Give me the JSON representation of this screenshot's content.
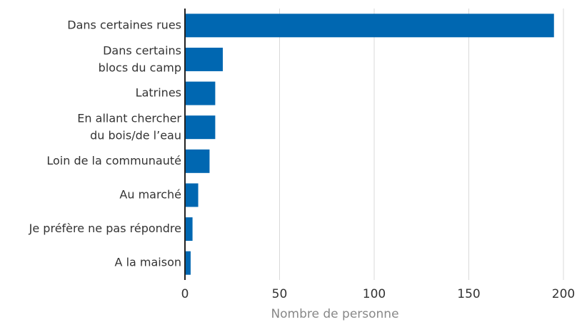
{
  "chart_data": {
    "type": "barh",
    "categories": [
      "Dans certaines rues",
      "Dans certains\nblocs du camp",
      "Latrines",
      "En allant chercher\ndu bois/de l’eau",
      "Loin de la communauté",
      "Au marché",
      "Je préfère ne pas répondre",
      "A la maison"
    ],
    "values": [
      195,
      20,
      16,
      16,
      13,
      7,
      4,
      3
    ],
    "color": "#0067b1",
    "xlim": [
      0,
      200
    ],
    "xticks": [
      0,
      50,
      100,
      150,
      200
    ],
    "grid": true,
    "xlabel": "Nombre de personne"
  }
}
